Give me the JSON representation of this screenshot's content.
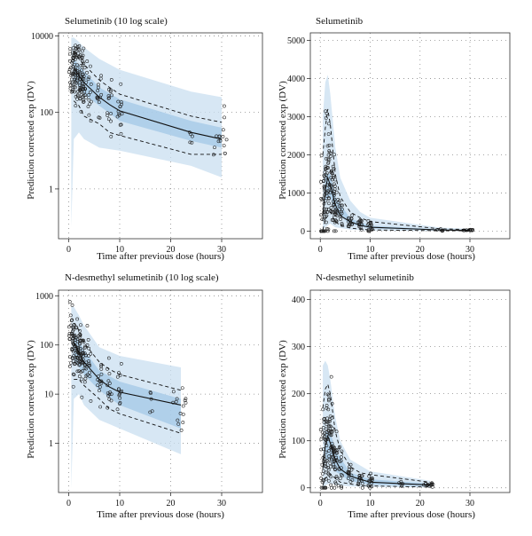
{
  "chart_data": [
    {
      "type": "scatter",
      "title": "Selumetinib (10 log scale)",
      "xlabel": "Time after previous dose (hours)",
      "ylabel": "Prediction corrected exp (DV)",
      "xlim": [
        -2,
        38
      ],
      "xticks": [
        0,
        10,
        20,
        30
      ],
      "ylim": [
        0.05,
        12000
      ],
      "yscale": "log",
      "yticks": [
        1,
        100,
        10000
      ],
      "ytick_labels": [
        "1",
        "100",
        "10000"
      ],
      "grid": true,
      "observed_median": [
        [
          1,
          1500
        ],
        [
          2,
          900
        ],
        [
          3,
          600
        ],
        [
          6,
          250
        ],
        [
          8,
          160
        ],
        [
          10,
          110
        ],
        [
          24,
          30
        ],
        [
          30,
          20
        ]
      ],
      "observed_p5": [
        [
          1,
          200
        ],
        [
          2,
          150
        ],
        [
          3,
          80
        ],
        [
          6,
          50
        ],
        [
          8,
          30
        ],
        [
          10,
          25
        ],
        [
          24,
          8
        ],
        [
          30,
          8
        ]
      ],
      "observed_p95": [
        [
          1,
          4000
        ],
        [
          2,
          2500
        ],
        [
          3,
          1800
        ],
        [
          6,
          700
        ],
        [
          8,
          450
        ],
        [
          10,
          300
        ],
        [
          24,
          80
        ],
        [
          30,
          55
        ]
      ],
      "pi_low": [
        [
          0.5,
          0.1
        ],
        [
          1,
          20
        ],
        [
          2,
          30
        ],
        [
          3,
          20
        ],
        [
          6,
          12
        ],
        [
          10,
          10
        ],
        [
          24,
          4
        ],
        [
          30,
          2
        ]
      ],
      "pi_high": [
        [
          0.5,
          9000
        ],
        [
          1,
          9000
        ],
        [
          2,
          7000
        ],
        [
          3,
          5000
        ],
        [
          6,
          2500
        ],
        [
          10,
          1300
        ],
        [
          24,
          350
        ],
        [
          30,
          250
        ]
      ],
      "median_band_low": [
        [
          1,
          700
        ],
        [
          3,
          300
        ],
        [
          6,
          150
        ],
        [
          10,
          60
        ],
        [
          24,
          18
        ],
        [
          30,
          12
        ]
      ],
      "median_band_high": [
        [
          1,
          2500
        ],
        [
          3,
          1200
        ],
        [
          6,
          450
        ],
        [
          10,
          220
        ],
        [
          24,
          60
        ],
        [
          30,
          40
        ]
      ]
    },
    {
      "type": "scatter",
      "title": "Selumetinib",
      "xlabel": "Time after previous dose (hours)",
      "ylabel": "Prediction corrected exp (DV)",
      "xlim": [
        -2,
        38
      ],
      "xticks": [
        0,
        10,
        20,
        30
      ],
      "ylim": [
        -200,
        5200
      ],
      "yscale": "linear",
      "yticks": [
        0,
        1000,
        2000,
        3000,
        4000,
        5000
      ],
      "ytick_labels": [
        "0",
        "1000",
        "2000",
        "3000",
        "4000",
        "5000"
      ],
      "grid": true,
      "observed_median": [
        [
          0.5,
          400
        ],
        [
          1,
          1100
        ],
        [
          1.5,
          1400
        ],
        [
          2,
          1200
        ],
        [
          3,
          700
        ],
        [
          4,
          400
        ],
        [
          6,
          250
        ],
        [
          8,
          150
        ],
        [
          10,
          100
        ],
        [
          24,
          30
        ],
        [
          30,
          20
        ]
      ],
      "observed_p5": [
        [
          0.5,
          30
        ],
        [
          1,
          300
        ],
        [
          2,
          500
        ],
        [
          3,
          250
        ],
        [
          4,
          150
        ],
        [
          6,
          80
        ],
        [
          8,
          50
        ],
        [
          10,
          30
        ],
        [
          24,
          10
        ],
        [
          30,
          8
        ]
      ],
      "observed_p95": [
        [
          0.5,
          2000
        ],
        [
          1,
          2700
        ],
        [
          1.5,
          3200
        ],
        [
          2,
          2800
        ],
        [
          3,
          1500
        ],
        [
          4,
          900
        ],
        [
          6,
          500
        ],
        [
          8,
          350
        ],
        [
          10,
          250
        ],
        [
          24,
          60
        ],
        [
          30,
          40
        ]
      ],
      "pi_low": [
        [
          0.5,
          0
        ],
        [
          1,
          100
        ],
        [
          2,
          200
        ],
        [
          3,
          100
        ],
        [
          6,
          40
        ],
        [
          10,
          15
        ],
        [
          24,
          3
        ],
        [
          30,
          2
        ]
      ],
      "pi_high": [
        [
          0.5,
          3000
        ],
        [
          1,
          3900
        ],
        [
          1.5,
          4100
        ],
        [
          2,
          3600
        ],
        [
          3,
          2200
        ],
        [
          4,
          1400
        ],
        [
          6,
          800
        ],
        [
          8,
          500
        ],
        [
          10,
          350
        ],
        [
          24,
          90
        ],
        [
          30,
          60
        ]
      ],
      "median_band_low": [
        [
          1,
          800
        ],
        [
          2,
          900
        ],
        [
          3,
          500
        ],
        [
          6,
          180
        ],
        [
          10,
          70
        ],
        [
          24,
          20
        ],
        [
          30,
          12
        ]
      ],
      "median_band_high": [
        [
          1,
          1500
        ],
        [
          2,
          1500
        ],
        [
          3,
          900
        ],
        [
          6,
          330
        ],
        [
          10,
          140
        ],
        [
          24,
          45
        ],
        [
          30,
          30
        ]
      ]
    },
    {
      "type": "scatter",
      "title": "N-desmethyl selumetinib (10 log scale)",
      "xlabel": "Time after previous dose (hours)",
      "ylabel": "Prediction corrected exp (DV)",
      "xlim": [
        -2,
        38
      ],
      "xticks": [
        0,
        10,
        20,
        30
      ],
      "ylim": [
        0.1,
        1300
      ],
      "yscale": "log",
      "yticks": [
        1,
        10,
        100,
        1000
      ],
      "ytick_labels": [
        "1",
        "10",
        "100",
        "1000"
      ],
      "grid": true,
      "observed_median": [
        [
          1,
          110
        ],
        [
          2,
          70
        ],
        [
          3,
          45
        ],
        [
          6,
          20
        ],
        [
          8,
          14
        ],
        [
          10,
          11
        ],
        [
          22,
          6
        ]
      ],
      "observed_p5": [
        [
          1,
          20
        ],
        [
          2,
          20
        ],
        [
          3,
          15
        ],
        [
          6,
          8
        ],
        [
          8,
          5
        ],
        [
          10,
          4
        ],
        [
          22,
          1.6
        ]
      ],
      "observed_p95": [
        [
          1,
          280
        ],
        [
          2,
          200
        ],
        [
          3,
          110
        ],
        [
          6,
          45
        ],
        [
          8,
          32
        ],
        [
          10,
          25
        ],
        [
          22,
          12
        ]
      ],
      "pi_low": [
        [
          0.5,
          0.12
        ],
        [
          1,
          8
        ],
        [
          2,
          10
        ],
        [
          3,
          6
        ],
        [
          6,
          3
        ],
        [
          10,
          2
        ],
        [
          22,
          0.6
        ]
      ],
      "pi_high": [
        [
          0.5,
          600
        ],
        [
          1,
          600
        ],
        [
          2,
          400
        ],
        [
          3,
          250
        ],
        [
          6,
          90
        ],
        [
          10,
          60
        ],
        [
          22,
          35
        ]
      ],
      "median_band_low": [
        [
          1,
          50
        ],
        [
          3,
          25
        ],
        [
          6,
          12
        ],
        [
          10,
          6
        ],
        [
          22,
          2
        ]
      ],
      "median_band_high": [
        [
          1,
          180
        ],
        [
          3,
          80
        ],
        [
          6,
          30
        ],
        [
          10,
          18
        ],
        [
          22,
          8
        ]
      ]
    },
    {
      "type": "scatter",
      "title": "N-desmethyl selumetinib",
      "xlabel": "Time after previous dose (hours)",
      "ylabel": "Prediction corrected exp (DV)",
      "xlim": [
        -2,
        38
      ],
      "xticks": [
        0,
        10,
        20,
        30
      ],
      "ylim": [
        -10,
        420
      ],
      "yscale": "linear",
      "yticks": [
        0,
        100,
        200,
        300,
        400
      ],
      "ytick_labels": [
        "0",
        "100",
        "200",
        "300",
        "400"
      ],
      "grid": true,
      "observed_median": [
        [
          0.5,
          40
        ],
        [
          1,
          90
        ],
        [
          1.5,
          110
        ],
        [
          2,
          95
        ],
        [
          3,
          60
        ],
        [
          4,
          40
        ],
        [
          6,
          25
        ],
        [
          8,
          18
        ],
        [
          10,
          12
        ],
        [
          22,
          6
        ]
      ],
      "observed_p5": [
        [
          0.5,
          5
        ],
        [
          1,
          20
        ],
        [
          2,
          30
        ],
        [
          3,
          20
        ],
        [
          4,
          12
        ],
        [
          6,
          8
        ],
        [
          8,
          5
        ],
        [
          10,
          4
        ],
        [
          22,
          1.5
        ]
      ],
      "observed_p95": [
        [
          0.5,
          170
        ],
        [
          1,
          210
        ],
        [
          1.5,
          220
        ],
        [
          2,
          200
        ],
        [
          3,
          120
        ],
        [
          4,
          80
        ],
        [
          6,
          45
        ],
        [
          8,
          32
        ],
        [
          10,
          28
        ],
        [
          22,
          12
        ]
      ],
      "pi_low": [
        [
          0.5,
          0
        ],
        [
          1,
          5
        ],
        [
          2,
          10
        ],
        [
          3,
          6
        ],
        [
          6,
          3
        ],
        [
          10,
          2
        ],
        [
          22,
          0.5
        ]
      ],
      "pi_high": [
        [
          0.5,
          260
        ],
        [
          1,
          270
        ],
        [
          1.5,
          260
        ],
        [
          2,
          230
        ],
        [
          3,
          150
        ],
        [
          4,
          100
        ],
        [
          6,
          60
        ],
        [
          10,
          35
        ],
        [
          22,
          15
        ]
      ],
      "median_band_low": [
        [
          1,
          60
        ],
        [
          2,
          60
        ],
        [
          3,
          35
        ],
        [
          6,
          14
        ],
        [
          10,
          7
        ],
        [
          22,
          3
        ]
      ],
      "median_band_high": [
        [
          1,
          120
        ],
        [
          2,
          120
        ],
        [
          3,
          80
        ],
        [
          6,
          32
        ],
        [
          10,
          18
        ],
        [
          22,
          9
        ]
      ]
    }
  ]
}
